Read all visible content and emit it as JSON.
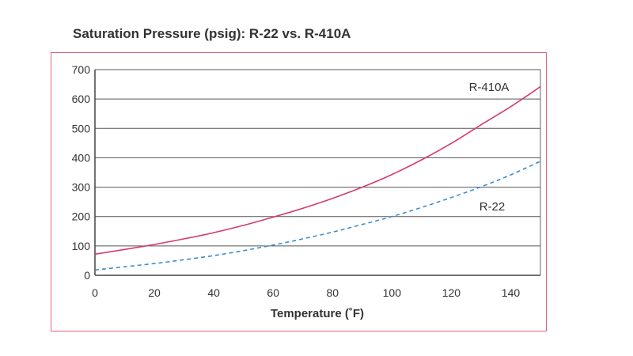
{
  "chart_data": {
    "type": "line",
    "title": "Saturation Pressure (psig): R-22 vs. R-410A",
    "xlabel": "Temperature (˚F)",
    "ylabel": "",
    "xlim": [
      0,
      150
    ],
    "ylim": [
      0,
      700
    ],
    "xticks": [
      0,
      20,
      40,
      60,
      80,
      100,
      120,
      140
    ],
    "yticks": [
      0,
      100,
      200,
      300,
      400,
      500,
      600,
      700
    ],
    "grid": "horizontal",
    "series": [
      {
        "name": "R-410A",
        "color": "#d63b6b",
        "style": "solid",
        "x": [
          0,
          10,
          20,
          30,
          40,
          50,
          60,
          70,
          80,
          90,
          100,
          110,
          120,
          130,
          140,
          150
        ],
        "y": [
          72,
          88,
          105,
          124,
          145,
          170,
          198,
          228,
          262,
          300,
          343,
          393,
          449,
          512,
          574,
          642
        ]
      },
      {
        "name": "R-22",
        "color": "#3a8fd0",
        "style": "dashed",
        "x": [
          0,
          10,
          20,
          30,
          40,
          50,
          60,
          70,
          80,
          90,
          100,
          110,
          120,
          130,
          140,
          150
        ],
        "y": [
          18,
          29,
          40,
          53,
          67,
          84,
          103,
          124,
          147,
          173,
          200,
          231,
          265,
          301,
          342,
          388
        ]
      }
    ]
  }
}
